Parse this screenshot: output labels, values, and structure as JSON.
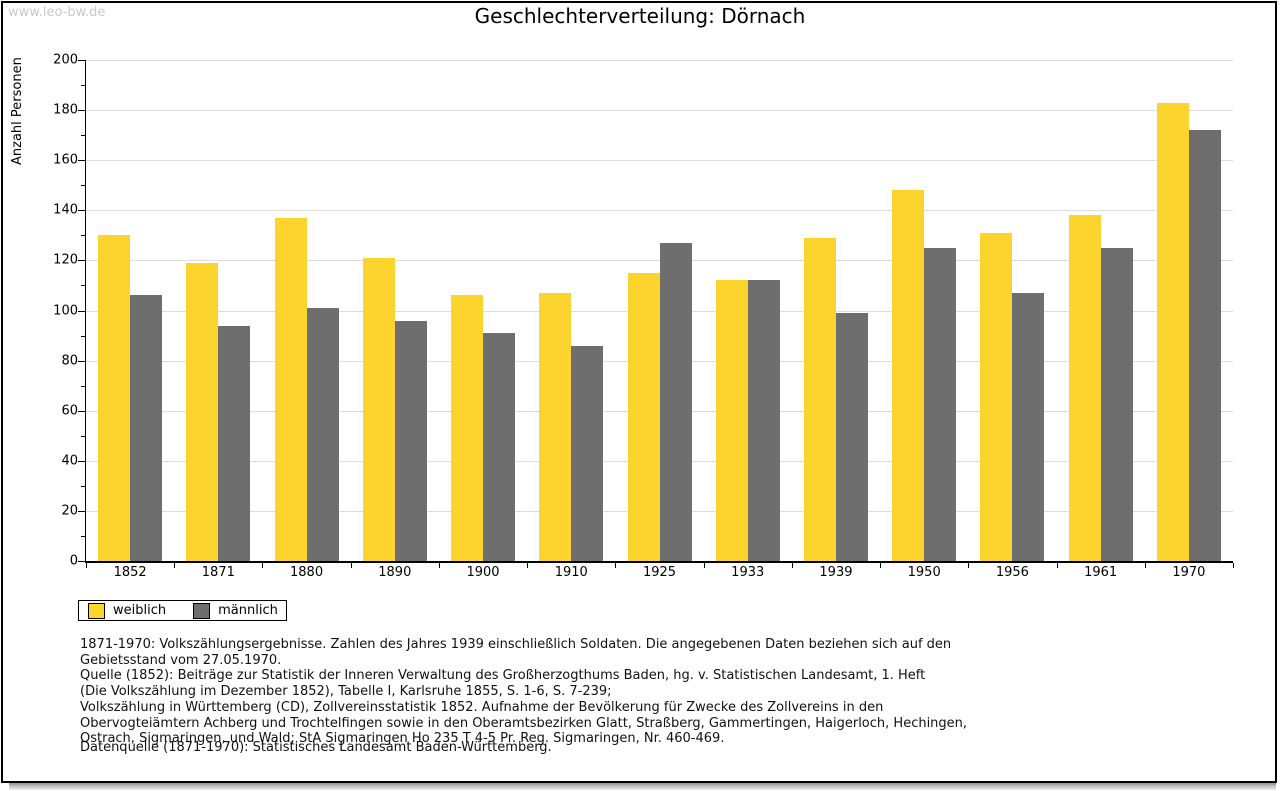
{
  "watermark": "www.leo-bw.de",
  "title": "Geschlechterverteilung: Dörnach",
  "chart_data": {
    "type": "bar",
    "title": "Geschlechterverteilung: Dörnach",
    "xlabel": "",
    "ylabel": "Anzahl Personen",
    "ylim": [
      0,
      200
    ],
    "ytick_step": 20,
    "yminor_step": 10,
    "grid": true,
    "legend_position": "bottom-left",
    "categories": [
      "1852",
      "1871",
      "1880",
      "1890",
      "1900",
      "1910",
      "1925",
      "1933",
      "1939",
      "1950",
      "1956",
      "1961",
      "1970"
    ],
    "series": [
      {
        "name": "weiblich",
        "color": "#FCD42D",
        "values": [
          130,
          119,
          137,
          121,
          106,
          107,
          115,
          112,
          129,
          148,
          131,
          138,
          183
        ]
      },
      {
        "name": "männlich",
        "color": "#6E6E6E",
        "values": [
          106,
          94,
          101,
          96,
          91,
          86,
          127,
          112,
          99,
          125,
          107,
          125,
          172
        ]
      }
    ],
    "colors": {
      "gridline": "#dcdcdc",
      "axis": "#000000",
      "weiblich": "#FCD42D",
      "maennlich": "#6E6E6E"
    }
  },
  "footnotes": {
    "lines": [
      "1871-1970: Volkszählungsergebnisse. Zahlen des Jahres 1939 einschließlich Soldaten. Die angegebenen Daten beziehen sich auf den",
      "Gebietsstand vom 27.05.1970.",
      "Quelle (1852): Beiträge zur Statistik der Inneren Verwaltung des Großherzogthums Baden, hg. v. Statistischen Landesamt, 1. Heft",
      "(Die Volkszählung im Dezember 1852), Tabelle I, Karlsruhe 1855, S. 1-6, S. 7-239;",
      "Volkszählung in Württemberg (CD), Zollvereinsstatistik 1852. Aufnahme der Bevölkerung für Zwecke des Zollvereins in den",
      "Obervogteiämtern Achberg und Trochtelfingen sowie in den Oberamtsbezirken Glatt, Straßberg, Gammertingen, Haigerloch, Hechingen,",
      "Ostrach, Sigmaringen, und Wald; StA Sigmaringen Ho 235 T 4-5 Pr. Reg. Sigmaringen, Nr. 460-469."
    ],
    "datasource": "Datenquelle (1871-1970): Statistisches Landesamt Baden-Württemberg."
  }
}
